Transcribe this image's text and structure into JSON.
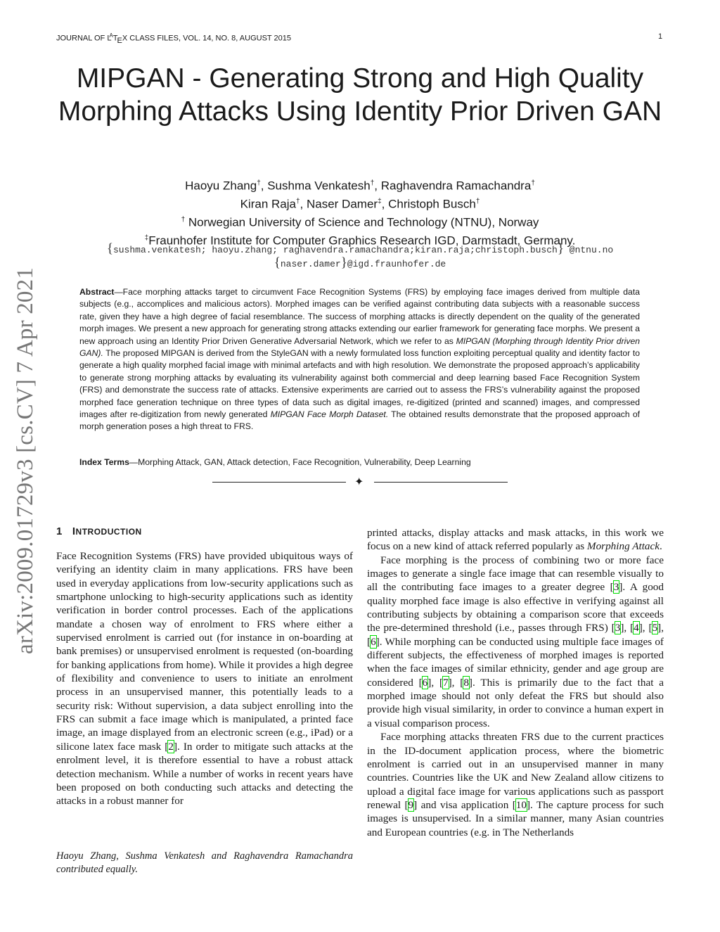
{
  "header": {
    "running_head": "JOURNAL OF LATEX CLASS FILES, VOL. 14, NO. 8, AUGUST 2015",
    "page_number": "1"
  },
  "arxiv_stamp": "arXiv:2009.01729v3  [cs.CV]  7 Apr 2021",
  "title": "MIPGAN - Generating Strong and High Quality Morphing Attacks Using Identity Prior Driven GAN",
  "authors": {
    "line1": [
      {
        "name": "Haoyu Zhang",
        "mark": "†"
      },
      {
        "name": "Sushma Venkatesh",
        "mark": "†"
      },
      {
        "name": "Raghavendra Ramachandra",
        "mark": "†"
      }
    ],
    "line2": [
      {
        "name": "Kiran Raja",
        "mark": "†"
      },
      {
        "name": "Naser Damer",
        "mark": "‡"
      },
      {
        "name": "Christoph Busch",
        "mark": "†"
      }
    ],
    "affiliation1_mark": "†",
    "affiliation1": " Norwegian University of Science and Technology (NTNU), Norway",
    "affiliation2_mark": "‡",
    "affiliation2": "Fraunhofer Institute for Computer Graphics Research IGD, Darmstadt, Germany."
  },
  "emails": {
    "line1": "sushma.venkatesh; haoyu.zhang; raghavendra.ramachandra;kiran.raja;christoph.busch",
    "line1_domain": " @ntnu.no",
    "line2": "naser.damer",
    "line2_domain": "@igd.fraunhofer.de"
  },
  "abstract": {
    "label": "Abstract",
    "part1": "—Face morphing attacks target to circumvent Face Recognition Systems (FRS) by employing face images derived from multiple data subjects (e.g., accomplices and malicious actors). Morphed images can be verified against contributing data subjects with a reasonable success rate, given they have a high degree of facial resemblance. The success of morphing attacks is directly dependent on the quality of the generated morph images. We present a new approach for generating strong attacks extending our earlier framework for generating face morphs. We present a new approach using an Identity Prior Driven Generative Adversarial Network, which we refer to as ",
    "italic1": "MIPGAN (Morphing through Identity Prior driven GAN).",
    "part2": " The proposed MIPGAN is derived from the StyleGAN with a newly formulated loss function exploiting perceptual quality and identity factor to generate a high quality morphed facial image with minimal artefacts and with high resolution. We demonstrate the proposed approach’s applicability to generate strong morphing attacks by evaluating its vulnerability against both commercial and deep learning based Face Recognition System (FRS) and demonstrate the success rate of attacks. Extensive experiments are carried out to assess the FRS’s vulnerability against the proposed morphed face generation technique on three types of data such as digital images, re-digitized (printed and scanned) images, and compressed images after re-digitization from newly generated ",
    "italic2": "MIPGAN Face Morph Dataset.",
    "part3": " The obtained results demonstrate that the proposed approach of morph generation poses a high threat to FRS."
  },
  "index_terms": {
    "label": "Index Terms",
    "text": "—Morphing Attack, GAN, Attack detection, Face Recognition, Vulnerability, Deep Learning"
  },
  "divider_glyph": "✦",
  "section": {
    "number": "1",
    "title_initial": "I",
    "title_rest": "NTRODUCTION"
  },
  "left_column": {
    "paragraph1": "Face Recognition Systems (FRS) have provided ubiquitous ways of verifying an identity claim in many applications. FRS have been used in everyday applications from low-security applications such as smartphone unlocking to high-security applications such as identity verification in border control processes. Each of the applications mandate a chosen way of enrolment to FRS where either a supervised enrolment is carried out (for instance in on-boarding at bank premises) or unsupervised enrolment is requested (on-boarding for banking applications from home). While it provides a high degree of flexibility and convenience to users to initiate an enrolment process in an unsupervised manner, this potentially leads to a security risk: Without supervision, a data subject enrolling into the FRS can submit a face image which is manipulated, a printed face image, an image displayed from an electronic screen (e.g., iPad) or a silicone latex face mask [2]. In order to mitigate such attacks at the enrolment level, it is therefore essential to have a robust attack detection mechanism. While a number of works in recent years have been proposed on both conducting such attacks and detecting the attacks in a robust manner for"
  },
  "footnote": "Haoyu Zhang, Sushma Venkatesh and Raghavendra Ramachandra contributed equally.",
  "right_column": {
    "paragraph1a": "printed attacks, display attacks and mask attacks, in this work we focus on a new kind of attack referred popularly as ",
    "paragraph1_italic": "Morphing Attack",
    "paragraph1b": ".",
    "paragraph2": "Face morphing is the process of combining two or more face images to generate a single face image that can resemble visually to all the contributing face images to a greater degree [3]. A good quality morphed face image is also effective in verifying against all contributing subjects by obtaining a comparison score that exceeds the pre-determined threshold (i.e., passes through FRS) [3], [4], [5], [6]. While morphing can be conducted using multiple face images of different subjects, the effectiveness of morphed images is reported when the face images of similar ethnicity, gender and age group are considered [6], [7], [8]. This is primarily due to the fact that a morphed image should not only defeat the FRS but should also provide high visual similarity, in order to convince a human expert in a visual comparison process.",
    "paragraph3": "Face morphing attacks threaten FRS due to the current practices in the ID-document application process, where the biometric enrolment is carried out in an unsupervised manner in many countries. Countries like the UK and New Zealand allow citizens to upload a digital face image for various applications such as passport renewal [9] and visa application [10]. The capture process for such images is unsupervised. In a similar manner, many Asian countries and European countries (e.g. in The Netherlands"
  },
  "colors": {
    "citation_box": "#00dd00",
    "arxiv_stamp": "#777777"
  }
}
